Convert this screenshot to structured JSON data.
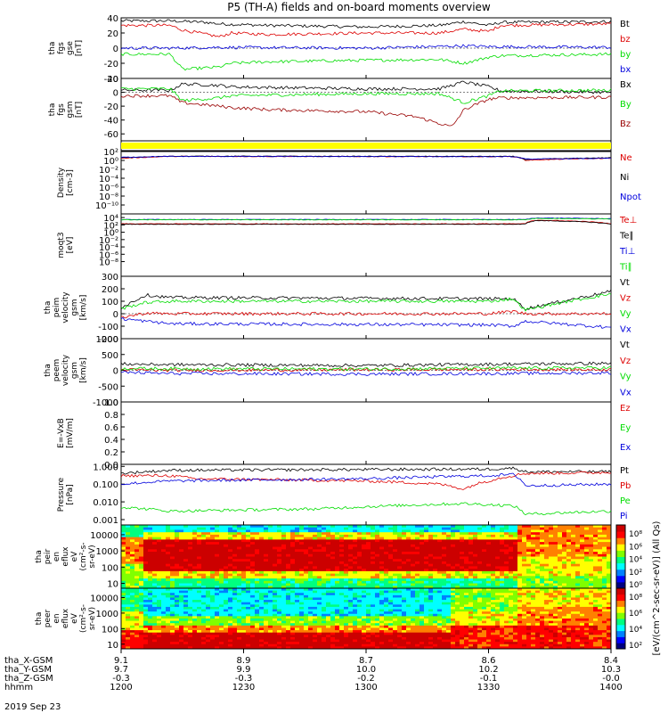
{
  "title": "P5 (TH-A) fields and on-board moments overview",
  "date": "2019 Sep 23",
  "colors": {
    "black": "#000000",
    "red": "#dd0000",
    "green": "#00dd00",
    "blue": "#0000dd",
    "darkred": "#990000",
    "yellow": "#ffff00"
  },
  "chart_data": [
    {
      "type": "line",
      "panel": "fgs-gse",
      "ylabel": [
        "tha",
        "fgs",
        "gse",
        "[nT]"
      ],
      "ylim": [
        -40,
        40
      ],
      "yticks": [
        "40",
        "20",
        "0",
        "-20",
        "-40"
      ],
      "series": [
        {
          "name": "Bt",
          "color": "#000000",
          "x": [
            12.0,
            12.2,
            12.35,
            12.4,
            12.6,
            13.0,
            13.3,
            13.4,
            13.5,
            13.55,
            14.0
          ],
          "values": [
            36,
            36,
            34,
            32,
            30,
            28,
            30,
            35,
            30,
            34,
            35
          ]
        },
        {
          "name": "bz",
          "color": "#dd0000",
          "x": [
            12.0,
            12.2,
            12.25,
            12.4,
            12.45,
            12.6,
            13.0,
            13.3,
            13.4,
            13.5,
            13.55,
            14.0
          ],
          "values": [
            30,
            30,
            24,
            15,
            20,
            18,
            20,
            20,
            25,
            22,
            30,
            32
          ]
        },
        {
          "name": "by",
          "color": "#00dd00",
          "x": [
            12.0,
            12.2,
            12.25,
            12.4,
            12.45,
            12.6,
            13.0,
            13.3,
            13.4,
            13.5,
            13.55,
            14.0
          ],
          "values": [
            -8,
            -8,
            -28,
            -25,
            -20,
            -18,
            -16,
            -15,
            -20,
            -12,
            -10,
            -8
          ]
        },
        {
          "name": "bx",
          "color": "#0000dd",
          "x": [
            12.0,
            12.2,
            12.4,
            13.0,
            13.4,
            13.5,
            14.0
          ],
          "values": [
            0,
            0,
            1,
            0,
            3,
            2,
            1
          ]
        }
      ]
    },
    {
      "type": "line",
      "panel": "fgs-gsm",
      "ylabel": [
        "tha",
        "fgs",
        "gsm",
        "[nT]"
      ],
      "ylim": [
        -70,
        20
      ],
      "yticks": [
        "20",
        "0",
        "-20",
        "-40",
        "-60"
      ],
      "series": [
        {
          "name": "Bx",
          "color": "#000000",
          "x": [
            12.0,
            12.2,
            12.25,
            12.4,
            12.45,
            12.6,
            13.0,
            13.3,
            13.4,
            13.5,
            13.55,
            14.0
          ],
          "values": [
            3,
            3,
            12,
            10,
            8,
            7,
            5,
            5,
            15,
            8,
            2,
            0
          ]
        },
        {
          "name": "By",
          "color": "#00dd00",
          "x": [
            12.0,
            12.2,
            12.25,
            12.4,
            12.45,
            12.6,
            13.0,
            13.3,
            13.4,
            13.5,
            13.55,
            14.0
          ],
          "values": [
            5,
            5,
            -12,
            -8,
            -5,
            -4,
            -2,
            -2,
            -15,
            -5,
            2,
            3
          ]
        },
        {
          "name": "Bz",
          "color": "#990000",
          "x": [
            12.0,
            12.2,
            12.25,
            12.4,
            12.45,
            12.6,
            13.0,
            13.2,
            13.35,
            13.4,
            13.5,
            13.55,
            14.0
          ],
          "values": [
            -5,
            -5,
            -15,
            -20,
            -22,
            -25,
            -28,
            -35,
            -50,
            -25,
            -10,
            -8,
            -7
          ]
        }
      ]
    },
    {
      "type": "bar",
      "panel": "flag",
      "ylabel": [],
      "series": [
        {
          "name": "",
          "color": "#ffff00",
          "x": [
            12.0,
            14.0
          ],
          "values": [
            1,
            1
          ]
        }
      ]
    },
    {
      "type": "line",
      "panel": "density",
      "log": true,
      "ylabel": [
        "Density",
        "[cm-3]"
      ],
      "ylim": [
        1e-12,
        100
      ],
      "ytick_values": [
        100,
        1,
        0.01,
        0.0001,
        1e-06,
        1e-08,
        1e-10
      ],
      "yticks": [
        "10²",
        "10⁰",
        "10⁻²",
        "10⁻⁴",
        "10⁻⁶",
        "10⁻⁸",
        "10⁻¹⁰"
      ],
      "series": [
        {
          "name": "Ne",
          "color": "#dd0000",
          "x": [
            12.0,
            12.1,
            12.2,
            13.6,
            13.65,
            14.0
          ],
          "values": [
            3,
            5,
            8,
            7,
            1,
            3
          ]
        },
        {
          "name": "Ni",
          "color": "#000000",
          "x": [
            12.0,
            12.1,
            12.2,
            13.6,
            13.65,
            14.0
          ],
          "values": [
            4,
            6,
            9,
            8,
            1.5,
            4
          ]
        },
        {
          "name": "Npot",
          "color": "#0000dd",
          "x": [
            12.0,
            12.2,
            13.6,
            13.65,
            14.0
          ],
          "values": [
            5,
            8,
            7,
            2,
            3
          ]
        }
      ]
    },
    {
      "type": "line",
      "panel": "temperature",
      "log": true,
      "ylabel": [
        "moqt3",
        "[eV]"
      ],
      "ylim": [
        1e-12,
        100000.0
      ],
      "ytick_values": [
        10000.0,
        100,
        1,
        0.01,
        0.0001,
        1e-06,
        1e-08
      ],
      "yticks": [
        "10⁴",
        "10²",
        "10⁰",
        "10⁻²",
        "10⁻⁴",
        "10⁻⁶",
        "10⁻⁸"
      ],
      "series": [
        {
          "name": "Te⊥",
          "color": "#dd0000",
          "x": [
            12.0,
            13.65,
            13.7,
            14.0
          ],
          "values": [
            200,
            200,
            2000,
            200
          ]
        },
        {
          "name": "Te∥",
          "color": "#000000",
          "x": [
            12.0,
            13.65,
            13.7,
            14.0
          ],
          "values": [
            150,
            150,
            1500,
            150
          ]
        },
        {
          "name": "Ti⊥",
          "color": "#0000dd",
          "x": [
            12.0,
            13.65,
            13.7,
            14.0
          ],
          "values": [
            3000,
            3000,
            8000,
            5000
          ]
        },
        {
          "name": "Ti∥",
          "color": "#00dd00",
          "x": [
            12.0,
            13.65,
            13.7,
            14.0
          ],
          "values": [
            2500,
            2500,
            6000,
            4000
          ]
        }
      ]
    },
    {
      "type": "line",
      "panel": "peim-velocity",
      "ylabel": [
        "tha",
        "peim",
        "velocity",
        "gsm",
        "[km/s]"
      ],
      "ylim": [
        -200,
        300
      ],
      "yticks": [
        "300",
        "200",
        "100",
        "0",
        "-100",
        "-200"
      ],
      "series": [
        {
          "name": "Vt",
          "color": "#000000",
          "x": [
            12.0,
            12.1,
            12.2,
            13.5,
            13.6,
            13.65,
            13.8,
            14.0
          ],
          "values": [
            50,
            150,
            130,
            120,
            120,
            40,
            100,
            180
          ]
        },
        {
          "name": "Vz",
          "color": "#dd0000",
          "x": [
            12.0,
            12.1,
            12.2,
            13.5,
            13.6,
            13.65,
            14.0
          ],
          "values": [
            -30,
            5,
            0,
            0,
            20,
            0,
            0
          ]
        },
        {
          "name": "Vy",
          "color": "#00dd00",
          "x": [
            12.0,
            12.1,
            12.2,
            13.5,
            13.6,
            13.65,
            13.8,
            14.0
          ],
          "values": [
            40,
            90,
            100,
            100,
            120,
            30,
            90,
            160
          ]
        },
        {
          "name": "Vx",
          "color": "#0000dd",
          "x": [
            12.0,
            12.1,
            12.2,
            13.5,
            13.6,
            13.65,
            14.0
          ],
          "values": [
            -40,
            -60,
            -80,
            -90,
            -100,
            -60,
            -110
          ]
        }
      ]
    },
    {
      "type": "line",
      "panel": "peem-velocity",
      "ylabel": [
        "tha",
        "peem",
        "velocity",
        "gsm",
        "[km/s]"
      ],
      "ylim": [
        -1000,
        1000
      ],
      "yticks": [
        "1000",
        "500",
        "0",
        "-500",
        "-1000"
      ],
      "series": [
        {
          "name": "Vt",
          "color": "#000000",
          "x": [
            12.0,
            12.2,
            13.0,
            13.6,
            14.0
          ],
          "values": [
            200,
            180,
            150,
            200,
            220
          ]
        },
        {
          "name": "Vz",
          "color": "#dd0000",
          "x": [
            12.0,
            12.2,
            13.0,
            13.6,
            14.0
          ],
          "values": [
            20,
            0,
            20,
            30,
            20
          ]
        },
        {
          "name": "Vy",
          "color": "#00dd00",
          "x": [
            12.0,
            12.2,
            13.0,
            13.6,
            14.0
          ],
          "values": [
            60,
            50,
            40,
            70,
            80
          ]
        },
        {
          "name": "Vx",
          "color": "#0000dd",
          "x": [
            12.0,
            12.2,
            13.0,
            13.6,
            14.0
          ],
          "values": [
            -60,
            -100,
            -120,
            -100,
            -80
          ]
        }
      ]
    },
    {
      "type": "line",
      "panel": "efield",
      "ylabel": [
        "E=-VxB",
        "[mV/m]"
      ],
      "ylim": [
        0,
        1
      ],
      "yticks": [
        "1.0",
        "0.8",
        "0.6",
        "0.4",
        "0.2",
        "0.0"
      ],
      "series": [
        {
          "name": "Ez",
          "color": "#dd0000",
          "x": [],
          "values": []
        },
        {
          "name": "Ey",
          "color": "#00dd00",
          "x": [],
          "values": []
        },
        {
          "name": "Ex",
          "color": "#0000dd",
          "x": [],
          "values": []
        }
      ]
    },
    {
      "type": "line",
      "panel": "pressure",
      "log": true,
      "ylabel": [
        "Pressure",
        "[nPa]"
      ],
      "ylim": [
        0.0005,
        1.3
      ],
      "ytick_values": [
        1,
        0.1,
        0.01,
        0.001
      ],
      "yticks": [
        "1.000",
        "0.100",
        "0.010",
        "0.001"
      ],
      "series": [
        {
          "name": "Pt",
          "color": "#000000",
          "x": [
            12.0,
            12.2,
            13.5,
            13.6,
            13.65,
            14.0
          ],
          "values": [
            0.4,
            0.6,
            0.7,
            0.8,
            0.5,
            0.5
          ]
        },
        {
          "name": "Pb",
          "color": "#dd0000",
          "x": [
            12.0,
            12.2,
            12.3,
            13.0,
            13.3,
            13.4,
            13.5,
            13.6,
            13.65,
            14.0
          ],
          "values": [
            0.3,
            0.3,
            0.2,
            0.15,
            0.1,
            0.05,
            0.15,
            0.3,
            0.4,
            0.45
          ]
        },
        {
          "name": "Pe",
          "color": "#00dd00",
          "x": [
            12.0,
            12.2,
            12.8,
            13.4,
            13.6,
            13.65,
            14.0
          ],
          "values": [
            0.005,
            0.003,
            0.004,
            0.008,
            0.006,
            0.002,
            0.003
          ]
        },
        {
          "name": "Pi",
          "color": "#0000dd",
          "x": [
            12.0,
            12.2,
            13.0,
            13.5,
            13.6,
            13.65,
            14.0
          ],
          "values": [
            0.1,
            0.15,
            0.2,
            0.3,
            0.35,
            0.08,
            0.1
          ]
        }
      ]
    },
    {
      "type": "heatmap",
      "panel": "peir",
      "ylabel": [
        "tha",
        "peir",
        "en",
        "eflux",
        "eV",
        "(cm²-s-",
        "sr-eV)"
      ],
      "ylim": [
        5,
        40000
      ],
      "ytick_values": [
        10000,
        1000,
        100,
        10
      ],
      "yticks": [
        "10000",
        "1000",
        "100",
        "10"
      ],
      "colorbar_ticks": [
        "10⁸",
        "10⁶",
        "10⁴",
        "10²",
        "10⁰"
      ],
      "colorbar_label": "[eV/(cm^2-sec-sr-eV)] (All Qs)"
    },
    {
      "type": "heatmap",
      "panel": "peer",
      "ylabel": [
        "tha",
        "peer",
        "en",
        "eflux",
        "eV",
        "(cm²-s-",
        "sr-eV)"
      ],
      "ylim": [
        5,
        40000
      ],
      "ytick_values": [
        10000,
        1000,
        100,
        10
      ],
      "yticks": [
        "10000",
        "1000",
        "100",
        "10"
      ],
      "colorbar_ticks": [
        "10⁸",
        "10⁶",
        "10⁴",
        "10²"
      ],
      "colorbar_label": ""
    }
  ],
  "time_axis": {
    "tick_hours": [
      12.0,
      12.5,
      13.0,
      13.5,
      14.0
    ],
    "rows": [
      {
        "label": "tha_X-GSM",
        "values": [
          "9.1",
          "8.9",
          "8.7",
          "8.6",
          "8.4"
        ]
      },
      {
        "label": "tha_Y-GSM",
        "values": [
          "9.7",
          "9.9",
          "10.0",
          "10.2",
          "10.3"
        ]
      },
      {
        "label": "tha_Z-GSM",
        "values": [
          "-0.3",
          "-0.3",
          "-0.2",
          "-0.1",
          "-0.0"
        ]
      },
      {
        "label": "hhmm",
        "values": [
          "1200",
          "1230",
          "1300",
          "1330",
          "1400"
        ]
      }
    ]
  }
}
